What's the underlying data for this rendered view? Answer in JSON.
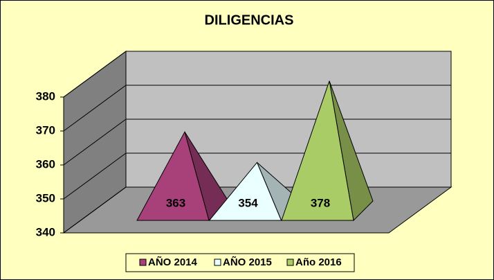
{
  "chart_data": {
    "type": "pyramid",
    "title": "DILIGENCIAS",
    "categories": [
      null
    ],
    "series": [
      {
        "name": "AÑO 2014",
        "color": "#a8407a",
        "values": [
          363
        ]
      },
      {
        "name": "AÑO 2015",
        "color": "#eaffff",
        "values": [
          354
        ]
      },
      {
        "name": "Año 2016",
        "color": "#aacc66",
        "values": [
          378
        ]
      }
    ],
    "ylim": [
      340,
      380
    ],
    "yticks": [
      340,
      350,
      360,
      370,
      380
    ],
    "grid": true,
    "legend": "bottom"
  }
}
